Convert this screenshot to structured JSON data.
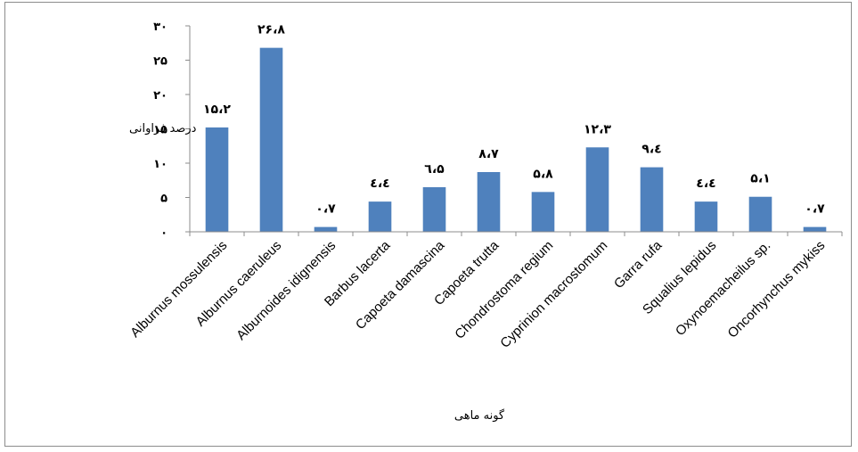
{
  "chart_data": {
    "type": "bar",
    "categories": [
      "Alburnus mossulensis",
      "Alburnus caeruleus",
      "Alburnoides idignensis",
      "Barbus lacerta",
      "Capoeta damascina",
      "Capoeta trutta",
      "Chondrostoma regium",
      "Cyprinion macrostomum",
      "Garra rufa",
      "Squalius lepidus",
      "Oxynoemacheilus sp.",
      "Oncorhynchus mykiss"
    ],
    "values": [
      15.2,
      26.8,
      0.7,
      4.4,
      6.5,
      8.7,
      5.8,
      12.3,
      9.4,
      4.4,
      5.1,
      0.7
    ],
    "data_labels": [
      "۱۵،۲",
      "۲۶،۸",
      "۰،۷",
      "٤،٤",
      "٦،۵",
      "۸،۷",
      "۵،۸",
      "۱۲،۳",
      "۹،٤",
      "٤،٤",
      "۵،۱",
      "۰،۷"
    ],
    "y_ticks": [
      0,
      5,
      10,
      15,
      20,
      25,
      30
    ],
    "y_tick_labels": [
      "۰",
      "۵",
      "۱۰",
      "۱۵",
      "۲۰",
      "۲۵",
      "۳۰"
    ],
    "ylim": [
      0,
      30
    ],
    "xlabel": "گونه ماهی",
    "ylabel": "درصد فراوانی",
    "grid": false,
    "legend": "none",
    "bar_color": "#4f81bd"
  }
}
